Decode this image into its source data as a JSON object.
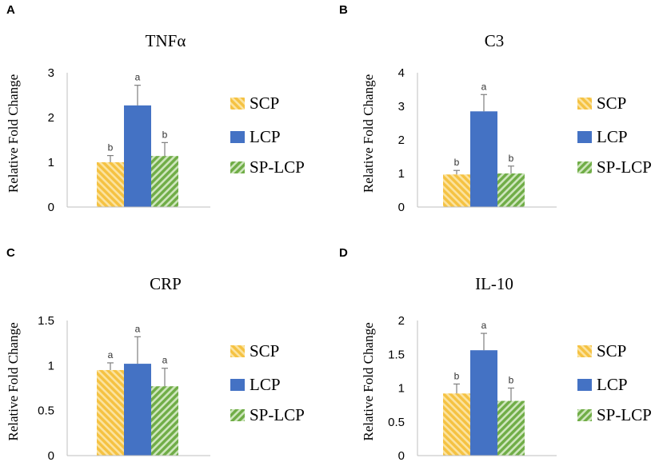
{
  "series_styles": [
    {
      "name": "SCP",
      "color": "#F5C242",
      "pattern": "stripes-right"
    },
    {
      "name": "LCP",
      "color": "#4472C4",
      "pattern": "solid"
    },
    {
      "name": "SP-LCP",
      "color": "#70AD47",
      "pattern": "stripes-left"
    }
  ],
  "chart_data": [
    {
      "panel": "A",
      "type": "bar",
      "title": "TNFα",
      "ylabel": "Relative Fold Change",
      "ylim": [
        0,
        3
      ],
      "yticks": [
        0,
        1,
        2,
        3
      ],
      "ytick_labels": [
        "0",
        "1",
        "2",
        "3"
      ],
      "series": [
        {
          "name": "SCP",
          "value": 1.0,
          "error": 0.15,
          "letter": "b"
        },
        {
          "name": "LCP",
          "value": 2.27,
          "error": 0.45,
          "letter": "a"
        },
        {
          "name": "SP-LCP",
          "value": 1.14,
          "error": 0.3,
          "letter": "b"
        }
      ],
      "legend": [
        "SCP",
        "LCP",
        "SP-LCP"
      ]
    },
    {
      "panel": "B",
      "type": "bar",
      "title": "C3",
      "ylabel": "Relative Fold Change",
      "ylim": [
        0,
        4
      ],
      "yticks": [
        0,
        1,
        2,
        3,
        4
      ],
      "ytick_labels": [
        "0",
        "1",
        "2",
        "3",
        "4"
      ],
      "series": [
        {
          "name": "SCP",
          "value": 0.97,
          "error": 0.12,
          "letter": "b"
        },
        {
          "name": "LCP",
          "value": 2.85,
          "error": 0.5,
          "letter": "a"
        },
        {
          "name": "SP-LCP",
          "value": 1.0,
          "error": 0.22,
          "letter": "b"
        }
      ],
      "legend": [
        "SCP",
        "LCP",
        "SP-LCP"
      ]
    },
    {
      "panel": "C",
      "type": "bar",
      "title": "CRP",
      "ylabel": "Relative Fold Change",
      "ylim": [
        0,
        1.5
      ],
      "yticks": [
        0,
        0.5,
        1,
        1.5
      ],
      "ytick_labels": [
        "0",
        "0.5",
        "1",
        "1.5"
      ],
      "series": [
        {
          "name": "SCP",
          "value": 0.95,
          "error": 0.08,
          "letter": "a"
        },
        {
          "name": "LCP",
          "value": 1.02,
          "error": 0.3,
          "letter": "a"
        },
        {
          "name": "SP-LCP",
          "value": 0.77,
          "error": 0.2,
          "letter": "a"
        }
      ],
      "legend": [
        "SCP",
        "LCP",
        "SP-LCP"
      ]
    },
    {
      "panel": "D",
      "type": "bar",
      "title": "IL-10",
      "ylabel": "Relative Fold Change",
      "ylim": [
        0,
        2
      ],
      "yticks": [
        0,
        0.5,
        1,
        1.5,
        2
      ],
      "ytick_labels": [
        "0",
        "0.5",
        "1",
        "1.5",
        "2"
      ],
      "series": [
        {
          "name": "SCP",
          "value": 0.92,
          "error": 0.14,
          "letter": "b"
        },
        {
          "name": "LCP",
          "value": 1.56,
          "error": 0.25,
          "letter": "a"
        },
        {
          "name": "SP-LCP",
          "value": 0.81,
          "error": 0.19,
          "letter": "b"
        }
      ],
      "legend": [
        "SCP",
        "LCP",
        "SP-LCP"
      ]
    }
  ]
}
